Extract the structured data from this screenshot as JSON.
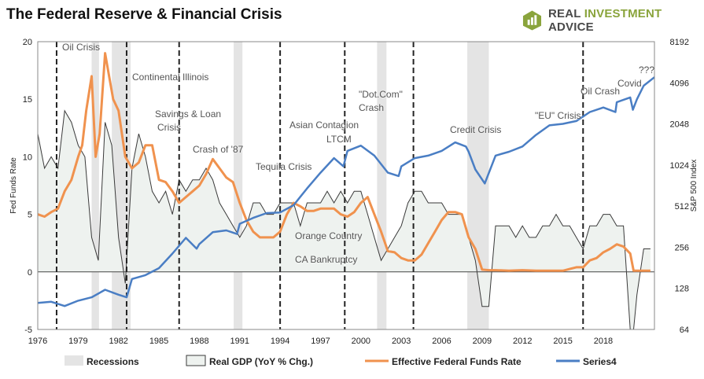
{
  "page": {
    "title": "The Federal Reserve & Financial Crisis",
    "brand": "REAL INVESTMENT ADVICE",
    "brand_icon": "bar-chart-logo-icon",
    "brand_color": "#8aa43c"
  },
  "chart_data": {
    "type": "line",
    "title": "The Federal Reserve & Financial Crisis",
    "xlabel": "",
    "ylabel": "Fed Funds Rate",
    "ylabel_right": "S&P 500 Index",
    "xlim": [
      1976,
      2021.8
    ],
    "ylim": [
      -5,
      20
    ],
    "ylim_right": [
      64,
      8192
    ],
    "right_axis_scale": "log2",
    "x_ticks": [
      "1976",
      "1979",
      "1982",
      "1985",
      "1988",
      "1991",
      "1994",
      "1997",
      "2000",
      "2003",
      "2006",
      "2009",
      "2012",
      "2015",
      "2018"
    ],
    "y_ticks": [
      "-5",
      "0",
      "5",
      "10",
      "15",
      "20"
    ],
    "y_right_ticks": [
      "64",
      "128",
      "256",
      "512",
      "1024",
      "2048",
      "4096",
      "8192"
    ],
    "grid": false,
    "legend_position": "bottom",
    "colors": {
      "recession": "#e4e4e4",
      "gdp_fill": "#eef2ef",
      "gdp_line": "#3a3a3a",
      "fed_funds": "#f0924e",
      "sp500": "#4a7ec4",
      "crisis_line": "#222222"
    },
    "recessions": [
      [
        1980.0,
        1980.55
      ],
      [
        1981.5,
        1982.9
      ],
      [
        1990.55,
        1991.2
      ],
      [
        2001.2,
        2001.9
      ],
      [
        2007.9,
        2009.5
      ]
    ],
    "crisis_lines": [
      1977.4,
      1982.6,
      1986.5,
      1994.0,
      1998.8,
      2003.9,
      2016.5
    ],
    "annotations": [
      "Oil Crisis",
      "Continental Illinois",
      "Savings & Loan",
      "Crisis",
      "Crash of '87",
      "Tequila Crisis",
      "Asian Contagion",
      "LTCM",
      "\"Dot.Com\"",
      "Crash",
      "Orange Country",
      "CA Bankruptcy",
      "Credit Crisis",
      "\"EU\" Crisis",
      "Oil Crash",
      "Covid",
      "???"
    ],
    "series": [
      {
        "name": "Real GDP (YoY % Chg.)",
        "x": [
          1976,
          1976.5,
          1977,
          1977.5,
          1978,
          1978.5,
          1979,
          1979.5,
          1980,
          1980.5,
          1981,
          1981.5,
          1982,
          1982.5,
          1983,
          1983.5,
          1984,
          1984.5,
          1985,
          1985.5,
          1986,
          1986.5,
          1987,
          1987.5,
          1988,
          1988.5,
          1989,
          1989.5,
          1990,
          1990.5,
          1991,
          1991.5,
          1992,
          1992.5,
          1993,
          1993.5,
          1994,
          1994.5,
          1995,
          1995.5,
          1996,
          1996.5,
          1997,
          1997.5,
          1998,
          1998.5,
          1999,
          1999.5,
          2000,
          2000.5,
          2001,
          2001.5,
          2002,
          2002.5,
          2003,
          2003.5,
          2004,
          2004.5,
          2005,
          2005.5,
          2006,
          2006.5,
          2007,
          2007.5,
          2008,
          2008.5,
          2009,
          2009.5,
          2010,
          2010.5,
          2011,
          2011.5,
          2012,
          2012.5,
          2013,
          2013.5,
          2014,
          2014.5,
          2015,
          2015.5,
          2016,
          2016.5,
          2017,
          2017.5,
          2018,
          2018.5,
          2019,
          2019.5,
          2020,
          2020.25,
          2020.5,
          2020.75,
          2021,
          2021.25,
          2021.5
        ],
        "values": [
          12,
          9,
          10,
          9,
          14,
          13,
          11,
          10,
          3,
          1,
          13,
          11,
          3,
          -1,
          9,
          12,
          10,
          7,
          6,
          7,
          5,
          8,
          7,
          8,
          8,
          9,
          8,
          6,
          5,
          4,
          3,
          4,
          6,
          6,
          5,
          5,
          6,
          6,
          6,
          4,
          6,
          6,
          6,
          7,
          6,
          7,
          6,
          7,
          7,
          5,
          3,
          1,
          2,
          3,
          4,
          6,
          7,
          7,
          6,
          6,
          6,
          5,
          5,
          5,
          3,
          1,
          -3,
          -3,
          4,
          4,
          4,
          3,
          4,
          3,
          3,
          4,
          4,
          5,
          4,
          4,
          3,
          2,
          4,
          4,
          5,
          5,
          4,
          4,
          -5,
          -5,
          -2,
          0,
          2,
          2,
          2
        ]
      },
      {
        "name": "Effective Federal Funds Rate",
        "x": [
          1976,
          1976.5,
          1977,
          1977.5,
          1978,
          1978.5,
          1979,
          1979.3,
          1979.6,
          1980,
          1980.3,
          1980.6,
          1981,
          1981.3,
          1981.6,
          1982,
          1982.5,
          1983,
          1983.5,
          1984,
          1984.5,
          1985,
          1985.5,
          1986,
          1986.5,
          1987,
          1987.5,
          1988,
          1988.5,
          1989,
          1989.5,
          1990,
          1990.5,
          1991,
          1991.5,
          1992,
          1992.5,
          1993,
          1993.5,
          1994,
          1994.5,
          1995,
          1995.5,
          1996,
          1996.5,
          1997,
          1997.5,
          1998,
          1998.5,
          1999,
          1999.5,
          2000,
          2000.5,
          2001,
          2001.5,
          2002,
          2002.5,
          2003,
          2003.5,
          2004,
          2004.5,
          2005,
          2005.5,
          2006,
          2006.5,
          2007,
          2007.5,
          2008,
          2008.5,
          2009,
          2009.5,
          2010,
          2011,
          2012,
          2013,
          2014,
          2015,
          2015.5,
          2016,
          2016.5,
          2017,
          2017.5,
          2018,
          2018.5,
          2019,
          2019.5,
          2020,
          2020.25,
          2021,
          2021.5
        ],
        "values": [
          5,
          4.8,
          5.2,
          5.5,
          7,
          8,
          10,
          11,
          14,
          17,
          10,
          12,
          19,
          17,
          15,
          14,
          10,
          9,
          9.5,
          11,
          11,
          8,
          7.8,
          7,
          6,
          6.5,
          7,
          7.5,
          8.5,
          9.8,
          9,
          8.2,
          7.8,
          6,
          4.5,
          3.5,
          3,
          3,
          3,
          3.5,
          5,
          6,
          5.7,
          5.3,
          5.3,
          5.5,
          5.5,
          5.5,
          5,
          4.8,
          5.2,
          6,
          6.5,
          5,
          3.5,
          1.8,
          1.7,
          1.2,
          1,
          1,
          1.5,
          2.5,
          3.5,
          4.5,
          5.2,
          5.2,
          5,
          3,
          2,
          0.2,
          0.15,
          0.15,
          0.1,
          0.15,
          0.1,
          0.1,
          0.1,
          0.25,
          0.4,
          0.4,
          1,
          1.2,
          1.7,
          2,
          2.4,
          2.2,
          1.6,
          0.1,
          0.1,
          0.1
        ]
      },
      {
        "name": "Series4",
        "x": [
          1976,
          1977,
          1978,
          1979,
          1980,
          1981,
          1982,
          1982.6,
          1983,
          1984,
          1985,
          1986,
          1987,
          1987.8,
          1988,
          1989,
          1990,
          1990.8,
          1991,
          1992,
          1993,
          1994,
          1995,
          1996,
          1997,
          1998,
          1998.7,
          1999,
          2000,
          2001,
          2002,
          2002.8,
          2003,
          2004,
          2005,
          2006,
          2007,
          2007.8,
          2008,
          2008.5,
          2009.2,
          2010,
          2011,
          2012,
          2013,
          2014,
          2015,
          2016,
          2017,
          2018,
          2018.9,
          2019,
          2020,
          2020.2,
          2020.5,
          2021,
          2021.8
        ],
        "values": [
          100,
          102,
          95,
          104,
          110,
          125,
          115,
          110,
          150,
          160,
          180,
          230,
          300,
          250,
          270,
          330,
          340,
          320,
          380,
          420,
          455,
          460,
          520,
          690,
          900,
          1150,
          1000,
          1300,
          1420,
          1200,
          900,
          850,
          1000,
          1150,
          1200,
          1300,
          1500,
          1400,
          1280,
          950,
          750,
          1200,
          1280,
          1400,
          1700,
          2000,
          2050,
          2150,
          2500,
          2700,
          2500,
          2950,
          3200,
          2600,
          3100,
          3900,
          4500
        ]
      }
    ]
  },
  "legend": {
    "recessions": "Recessions",
    "gdp": "Real GDP (YoY % Chg.)",
    "fed": "Effective Federal Funds Rate",
    "sp": "Series4"
  }
}
